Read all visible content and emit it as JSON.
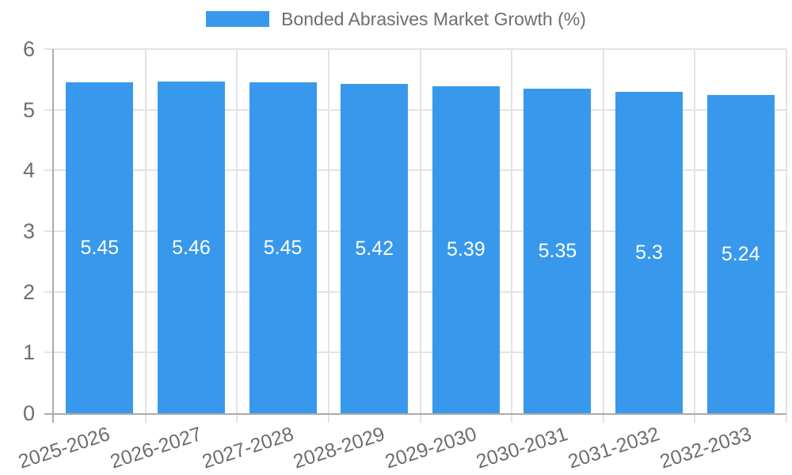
{
  "chart_data": {
    "type": "bar",
    "title": "Bonded Abrasives Market Growth (%)",
    "series": [
      {
        "name": "Bonded Abrasives Market Growth (%)",
        "values": [
          5.45,
          5.46,
          5.45,
          5.42,
          5.39,
          5.35,
          5.3,
          5.24
        ]
      }
    ],
    "categories": [
      "2025-2026",
      "2026-2027",
      "2027-2028",
      "2028-2029",
      "2029-2030",
      "2030-2031",
      "2031-2032",
      "2032-2033"
    ],
    "xlabel": "",
    "ylabel": "",
    "ylim": [
      0,
      6
    ],
    "yticks": [
      0,
      1,
      2,
      3,
      4,
      5,
      6
    ],
    "grid": true,
    "legend_position": "top-center",
    "colors": {
      "bar": "#3899ec",
      "value_label": "#ffffff",
      "axis_label": "#6e6e6e",
      "grid": "#e3e3e3",
      "axis_line": "#ababab",
      "background": "#ffffff"
    }
  }
}
